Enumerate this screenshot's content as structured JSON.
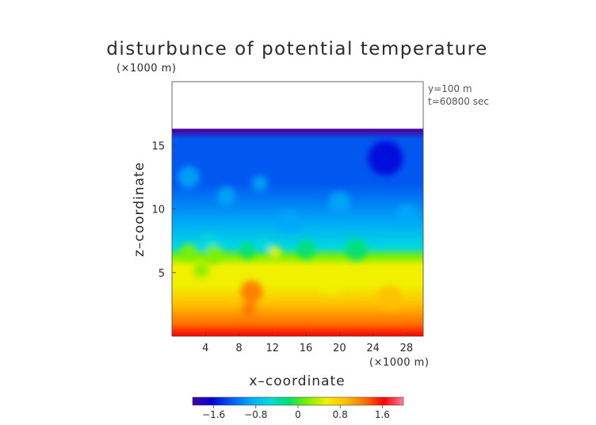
{
  "chart_data": {
    "type": "heatmap",
    "title": "disturbunce of potential temperature",
    "z_unit": "(×1000 m)",
    "x_unit": "(×1000 m)",
    "xlabel": "x–coordinate",
    "ylabel": "z–coordinate",
    "annotations": [
      "y=100 m",
      "t=60800 sec"
    ],
    "x_ticks": [
      "4",
      "8",
      "12",
      "16",
      "20",
      "24",
      "28"
    ],
    "y_ticks": [
      "5",
      "10",
      "15"
    ],
    "x_tick_values": [
      4,
      8,
      12,
      16,
      20,
      24,
      28
    ],
    "y_tick_values": [
      5,
      10,
      15
    ],
    "xlim": [
      0,
      30
    ],
    "ylim": [
      0,
      20
    ],
    "colorbar": {
      "range": [
        -2.0,
        2.0
      ],
      "ticks": [
        "−1.6",
        "−0.8",
        "0",
        "0.8",
        "1.6"
      ],
      "tick_values": [
        -1.6,
        -0.8,
        0,
        0.8,
        1.6
      ],
      "colors": [
        "#4a00a0",
        "#0000d8",
        "#0058f0",
        "#00a8f8",
        "#00d8e0",
        "#00e070",
        "#80f000",
        "#f0f000",
        "#ffc000",
        "#ff7000",
        "#ff0000",
        "#ff80a0"
      ]
    },
    "field_profile": [
      {
        "z": 0.0,
        "value": 1.6
      },
      {
        "z": 1.0,
        "value": 1.3
      },
      {
        "z": 2.5,
        "value": 0.9
      },
      {
        "z": 4.0,
        "value": 0.6
      },
      {
        "z": 5.5,
        "value": 0.4
      },
      {
        "z": 6.2,
        "value": 0.0
      },
      {
        "z": 7.0,
        "value": -0.6
      },
      {
        "z": 9.0,
        "value": -1.0
      },
      {
        "z": 12.0,
        "value": -1.2
      },
      {
        "z": 15.5,
        "value": -1.3
      },
      {
        "z": 16.2,
        "value": -1.9
      }
    ],
    "field_top_z": 16.3
  }
}
